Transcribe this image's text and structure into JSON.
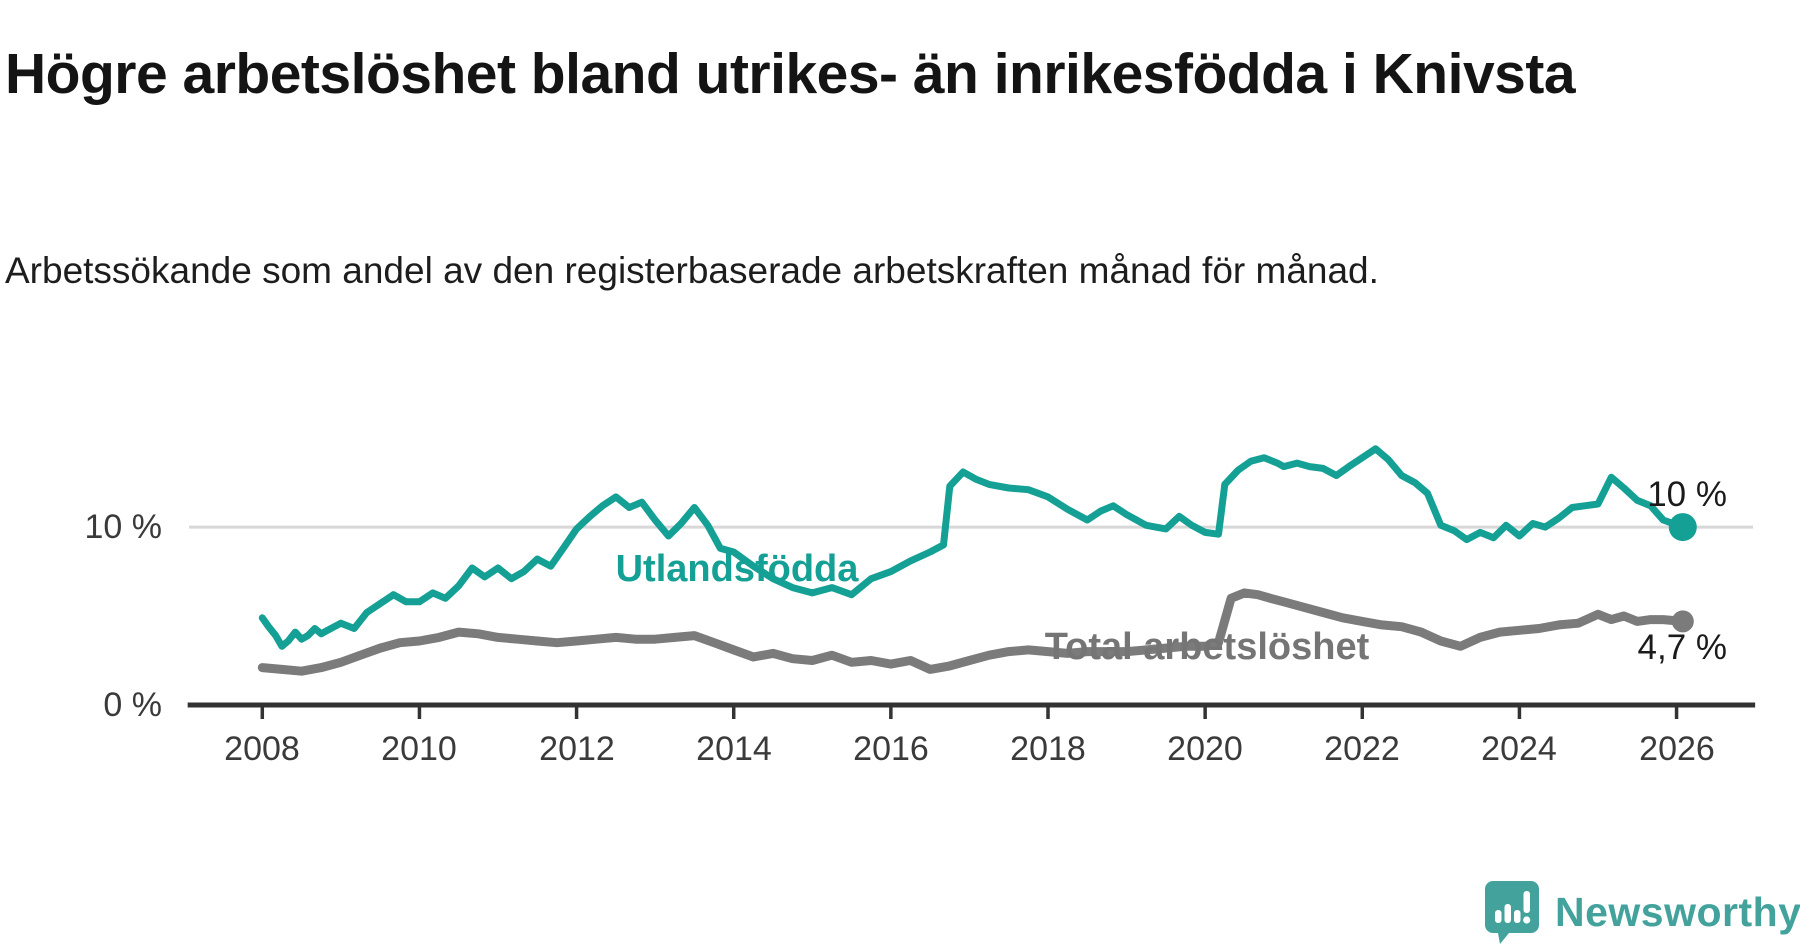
{
  "header": {
    "title": "Högre arbetslöshet bland utrikes- än inrikesfödda i Knivsta",
    "subtitle": "Arbetssökande som andel av den registerbaserade arbetskraften månad för månad."
  },
  "footer": {
    "brand": "Newsworthy",
    "brand_color": "#43a39c",
    "logo_icon": "speech-bubble-bar-chart-icon"
  },
  "chart_data": {
    "type": "line",
    "title": "Högre arbetslöshet bland utrikes- än inrikesfödda i Knivsta",
    "xlabel": "",
    "ylabel": "",
    "x_unit": "year (monthly data)",
    "y_unit": "%",
    "x_ticks": [
      2008,
      2010,
      2012,
      2014,
      2016,
      2018,
      2020,
      2022,
      2024,
      2026
    ],
    "x_range": [
      2007.05,
      2027.0
    ],
    "ylim": [
      0,
      15.5
    ],
    "y_gridlines": [
      10
    ],
    "grid": "horizontal-only",
    "legend_position": "inline-labels-on-lines",
    "y_axis_labels": [
      {
        "value": 0,
        "text": "0 %"
      },
      {
        "value": 10,
        "text": "10 %"
      }
    ],
    "axis_color": "#333333",
    "gridline_color": "#d8d8d8",
    "series": [
      {
        "name": "Utlandsfödda",
        "color": "#14a094",
        "width": 7,
        "dot_radius": 14,
        "end_dot": true,
        "end_label": "10 %",
        "points": [
          [
            2008.0,
            4.9
          ],
          [
            2008.08,
            4.4
          ],
          [
            2008.17,
            3.9
          ],
          [
            2008.25,
            3.3
          ],
          [
            2008.33,
            3.6
          ],
          [
            2008.42,
            4.1
          ],
          [
            2008.5,
            3.7
          ],
          [
            2008.58,
            3.9
          ],
          [
            2008.67,
            4.3
          ],
          [
            2008.75,
            4.0
          ],
          [
            2008.83,
            4.2
          ],
          [
            2009.0,
            4.6
          ],
          [
            2009.17,
            4.3
          ],
          [
            2009.33,
            5.2
          ],
          [
            2009.5,
            5.7
          ],
          [
            2009.67,
            6.2
          ],
          [
            2009.83,
            5.8
          ],
          [
            2010.0,
            5.8
          ],
          [
            2010.17,
            6.3
          ],
          [
            2010.33,
            6.0
          ],
          [
            2010.5,
            6.7
          ],
          [
            2010.67,
            7.7
          ],
          [
            2010.83,
            7.2
          ],
          [
            2011.0,
            7.7
          ],
          [
            2011.17,
            7.1
          ],
          [
            2011.33,
            7.5
          ],
          [
            2011.5,
            8.2
          ],
          [
            2011.67,
            7.8
          ],
          [
            2011.83,
            8.8
          ],
          [
            2012.0,
            9.9
          ],
          [
            2012.17,
            10.6
          ],
          [
            2012.33,
            11.2
          ],
          [
            2012.5,
            11.7
          ],
          [
            2012.67,
            11.1
          ],
          [
            2012.83,
            11.4
          ],
          [
            2013.0,
            10.4
          ],
          [
            2013.17,
            9.5
          ],
          [
            2013.33,
            10.2
          ],
          [
            2013.5,
            11.1
          ],
          [
            2013.67,
            10.1
          ],
          [
            2013.83,
            8.8
          ],
          [
            2014.0,
            8.6
          ],
          [
            2014.25,
            7.8
          ],
          [
            2014.5,
            7.1
          ],
          [
            2014.75,
            6.6
          ],
          [
            2015.0,
            6.3
          ],
          [
            2015.25,
            6.6
          ],
          [
            2015.5,
            6.2
          ],
          [
            2015.75,
            7.1
          ],
          [
            2016.0,
            7.5
          ],
          [
            2016.25,
            8.1
          ],
          [
            2016.5,
            8.6
          ],
          [
            2016.67,
            9.0
          ],
          [
            2016.75,
            12.3
          ],
          [
            2016.92,
            13.1
          ],
          [
            2017.08,
            12.7
          ],
          [
            2017.25,
            12.4
          ],
          [
            2017.5,
            12.2
          ],
          [
            2017.75,
            12.1
          ],
          [
            2018.0,
            11.7
          ],
          [
            2018.25,
            11.0
          ],
          [
            2018.5,
            10.4
          ],
          [
            2018.67,
            10.9
          ],
          [
            2018.83,
            11.2
          ],
          [
            2019.0,
            10.7
          ],
          [
            2019.25,
            10.1
          ],
          [
            2019.5,
            9.9
          ],
          [
            2019.67,
            10.6
          ],
          [
            2019.83,
            10.1
          ],
          [
            2020.0,
            9.7
          ],
          [
            2020.17,
            9.6
          ],
          [
            2020.25,
            12.4
          ],
          [
            2020.42,
            13.2
          ],
          [
            2020.58,
            13.7
          ],
          [
            2020.75,
            13.9
          ],
          [
            2020.92,
            13.6
          ],
          [
            2021.0,
            13.4
          ],
          [
            2021.17,
            13.6
          ],
          [
            2021.33,
            13.4
          ],
          [
            2021.5,
            13.3
          ],
          [
            2021.67,
            12.9
          ],
          [
            2021.83,
            13.4
          ],
          [
            2022.0,
            13.9
          ],
          [
            2022.17,
            14.4
          ],
          [
            2022.33,
            13.8
          ],
          [
            2022.5,
            12.9
          ],
          [
            2022.67,
            12.5
          ],
          [
            2022.83,
            11.9
          ],
          [
            2023.0,
            10.1
          ],
          [
            2023.17,
            9.8
          ],
          [
            2023.33,
            9.3
          ],
          [
            2023.5,
            9.7
          ],
          [
            2023.67,
            9.4
          ],
          [
            2023.83,
            10.1
          ],
          [
            2024.0,
            9.5
          ],
          [
            2024.17,
            10.2
          ],
          [
            2024.33,
            10.0
          ],
          [
            2024.5,
            10.5
          ],
          [
            2024.67,
            11.1
          ],
          [
            2024.83,
            11.2
          ],
          [
            2025.0,
            11.3
          ],
          [
            2025.17,
            12.8
          ],
          [
            2025.33,
            12.2
          ],
          [
            2025.5,
            11.5
          ],
          [
            2025.67,
            11.2
          ],
          [
            2025.83,
            10.4
          ],
          [
            2026.08,
            10.0
          ]
        ]
      },
      {
        "name": "Total arbetslöshet",
        "color": "#7b7b7b",
        "width": 9,
        "dot_radius": 11,
        "end_dot": true,
        "end_label": "4,7 %",
        "points": [
          [
            2008.0,
            2.1
          ],
          [
            2008.25,
            2.0
          ],
          [
            2008.5,
            1.9
          ],
          [
            2008.75,
            2.1
          ],
          [
            2009.0,
            2.4
          ],
          [
            2009.25,
            2.8
          ],
          [
            2009.5,
            3.2
          ],
          [
            2009.75,
            3.5
          ],
          [
            2010.0,
            3.6
          ],
          [
            2010.25,
            3.8
          ],
          [
            2010.5,
            4.1
          ],
          [
            2010.75,
            4.0
          ],
          [
            2011.0,
            3.8
          ],
          [
            2011.25,
            3.7
          ],
          [
            2011.5,
            3.6
          ],
          [
            2011.75,
            3.5
          ],
          [
            2012.0,
            3.6
          ],
          [
            2012.25,
            3.7
          ],
          [
            2012.5,
            3.8
          ],
          [
            2012.75,
            3.7
          ],
          [
            2013.0,
            3.7
          ],
          [
            2013.25,
            3.8
          ],
          [
            2013.5,
            3.9
          ],
          [
            2013.75,
            3.5
          ],
          [
            2014.0,
            3.1
          ],
          [
            2014.25,
            2.7
          ],
          [
            2014.5,
            2.9
          ],
          [
            2014.75,
            2.6
          ],
          [
            2015.0,
            2.5
          ],
          [
            2015.25,
            2.8
          ],
          [
            2015.5,
            2.4
          ],
          [
            2015.75,
            2.5
          ],
          [
            2016.0,
            2.3
          ],
          [
            2016.25,
            2.5
          ],
          [
            2016.5,
            2.0
          ],
          [
            2016.75,
            2.2
          ],
          [
            2017.0,
            2.5
          ],
          [
            2017.25,
            2.8
          ],
          [
            2017.5,
            3.0
          ],
          [
            2017.75,
            3.1
          ],
          [
            2018.0,
            3.0
          ],
          [
            2018.25,
            2.9
          ],
          [
            2018.5,
            3.0
          ],
          [
            2018.75,
            3.0
          ],
          [
            2019.0,
            3.0
          ],
          [
            2019.25,
            3.1
          ],
          [
            2019.5,
            3.2
          ],
          [
            2019.75,
            3.3
          ],
          [
            2020.0,
            3.3
          ],
          [
            2020.17,
            3.5
          ],
          [
            2020.33,
            6.0
          ],
          [
            2020.5,
            6.3
          ],
          [
            2020.67,
            6.2
          ],
          [
            2020.83,
            6.0
          ],
          [
            2021.0,
            5.8
          ],
          [
            2021.25,
            5.5
          ],
          [
            2021.5,
            5.2
          ],
          [
            2021.75,
            4.9
          ],
          [
            2022.0,
            4.7
          ],
          [
            2022.25,
            4.5
          ],
          [
            2022.5,
            4.4
          ],
          [
            2022.75,
            4.1
          ],
          [
            2023.0,
            3.6
          ],
          [
            2023.25,
            3.3
          ],
          [
            2023.5,
            3.8
          ],
          [
            2023.75,
            4.1
          ],
          [
            2024.0,
            4.2
          ],
          [
            2024.25,
            4.3
          ],
          [
            2024.5,
            4.5
          ],
          [
            2024.75,
            4.6
          ],
          [
            2025.0,
            5.1
          ],
          [
            2025.17,
            4.8
          ],
          [
            2025.33,
            5.0
          ],
          [
            2025.5,
            4.7
          ],
          [
            2025.67,
            4.8
          ],
          [
            2025.83,
            4.8
          ],
          [
            2026.08,
            4.7
          ]
        ]
      }
    ]
  }
}
